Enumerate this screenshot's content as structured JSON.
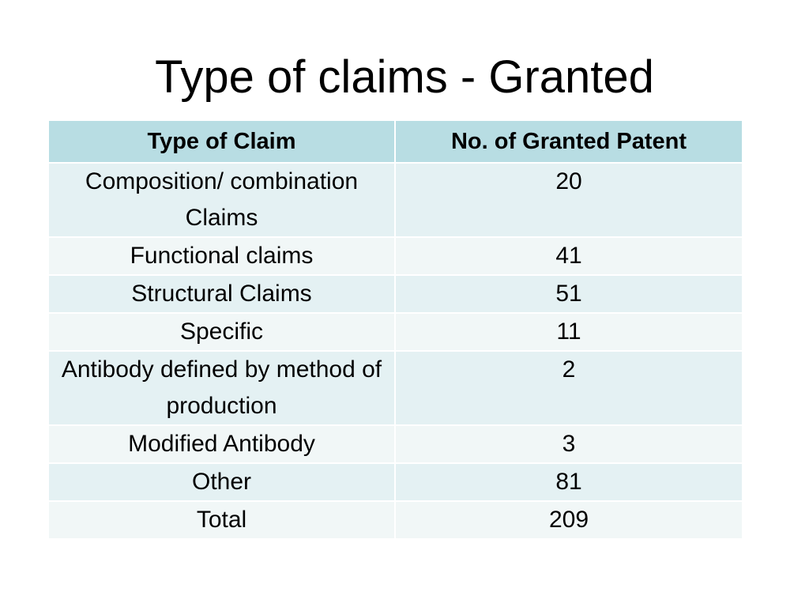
{
  "slide": {
    "title": "Type of claims - Granted"
  },
  "table": {
    "headers": [
      "Type of Claim",
      "No. of Granted Patent"
    ],
    "rows": [
      {
        "type": "Composition/ combination Claims",
        "count": "20"
      },
      {
        "type": "Functional claims",
        "count": "41"
      },
      {
        "type": "Structural Claims",
        "count": "51"
      },
      {
        "type": "Specific",
        "count": "11"
      },
      {
        "type": "Antibody defined by method of production",
        "count": "2"
      },
      {
        "type": "Modified Antibody",
        "count": "3"
      },
      {
        "type": "Other",
        "count": "81"
      },
      {
        "type": "Total",
        "count": "209"
      }
    ]
  },
  "colors": {
    "header_fill": "#b8dde3",
    "row_fill_odd": "#e4f1f3",
    "row_fill_even": "#f1f7f7",
    "border": "#ffffff"
  }
}
